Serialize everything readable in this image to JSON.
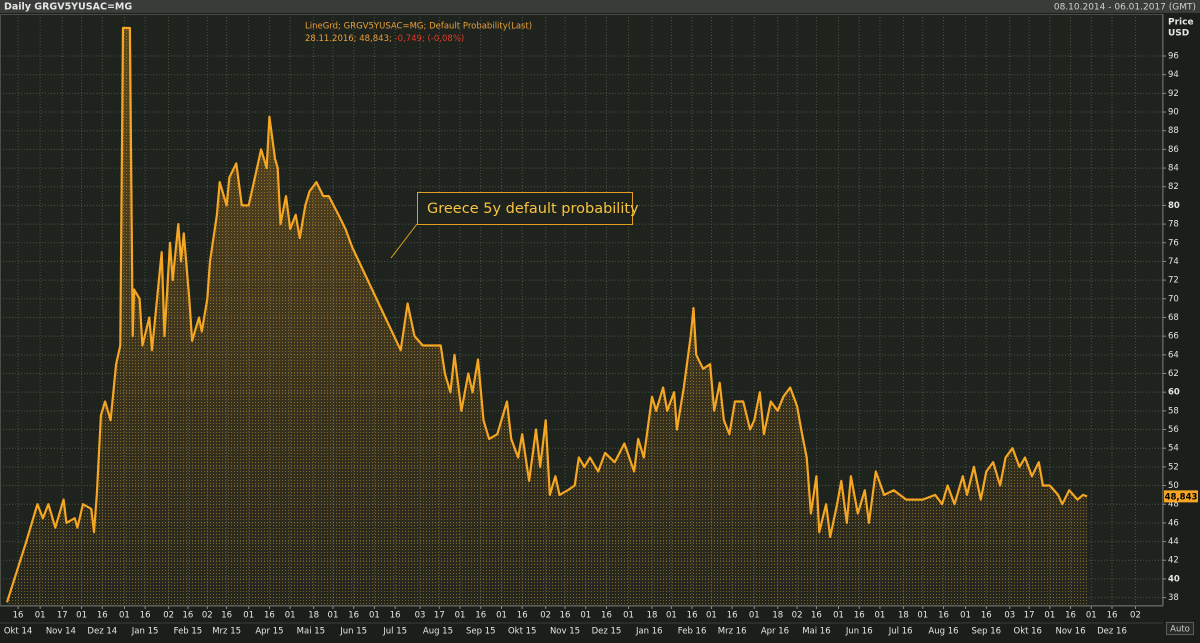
{
  "chart_data": {
    "type": "area-line",
    "title": "Daily GRGV5YUSAC=MG",
    "date_range": "08.10.2014 - 06.01.2017 (GMT)",
    "legend": "LineGrd; GRGV5YUSAC=MG; Default Probability(Last)",
    "legend_last": "28.11.2016; 48,843;",
    "legend_change": "-0,749; (-0,08%)",
    "axis_title": "Price",
    "axis_unit": "USD",
    "annotation": "Greece 5y default probability",
    "last_value_label": "48,843",
    "scale_mode": "Auto",
    "color": "#f5a623",
    "grid": true,
    "xlim": [
      "2014-10-08",
      "2017-01-06"
    ],
    "ylim": [
      37.1,
      100.5
    ],
    "yticks": [
      38,
      40,
      42,
      44,
      46,
      48,
      50,
      52,
      54,
      56,
      58,
      60,
      62,
      64,
      66,
      68,
      70,
      72,
      74,
      76,
      78,
      80,
      82,
      84,
      86,
      88,
      90,
      92,
      94,
      96
    ],
    "xticks": [
      {
        "value": "2014-10-16",
        "label": "16"
      },
      {
        "value": "2014-11-01",
        "label": "01"
      },
      {
        "value": "2014-11-17",
        "label": "17"
      },
      {
        "value": "2014-12-01",
        "label": "01"
      },
      {
        "value": "2014-12-16",
        "label": "16"
      },
      {
        "value": "2015-01-01",
        "label": "01"
      },
      {
        "value": "2015-01-16",
        "label": "16"
      },
      {
        "value": "2015-02-02",
        "label": "02"
      },
      {
        "value": "2015-02-16",
        "label": "16"
      },
      {
        "value": "2015-03-02",
        "label": "02"
      },
      {
        "value": "2015-03-16",
        "label": "16"
      },
      {
        "value": "2015-04-01",
        "label": "01"
      },
      {
        "value": "2015-04-16",
        "label": "16"
      },
      {
        "value": "2015-05-01",
        "label": "01"
      },
      {
        "value": "2015-05-18",
        "label": "18"
      },
      {
        "value": "2015-06-01",
        "label": "01"
      },
      {
        "value": "2015-06-16",
        "label": "16"
      },
      {
        "value": "2015-07-01",
        "label": "01"
      },
      {
        "value": "2015-07-16",
        "label": "16"
      },
      {
        "value": "2015-08-03",
        "label": "03"
      },
      {
        "value": "2015-08-17",
        "label": "17"
      },
      {
        "value": "2015-09-01",
        "label": "01"
      },
      {
        "value": "2015-09-16",
        "label": "16"
      },
      {
        "value": "2015-10-01",
        "label": "01"
      },
      {
        "value": "2015-10-16",
        "label": "16"
      },
      {
        "value": "2015-11-02",
        "label": "02"
      },
      {
        "value": "2015-11-16",
        "label": "16"
      },
      {
        "value": "2015-12-01",
        "label": "01"
      },
      {
        "value": "2015-12-16",
        "label": "16"
      },
      {
        "value": "2016-01-01",
        "label": "01"
      },
      {
        "value": "2016-01-18",
        "label": "18"
      },
      {
        "value": "2016-02-01",
        "label": "01"
      },
      {
        "value": "2016-02-16",
        "label": "16"
      },
      {
        "value": "2016-03-01",
        "label": "01"
      },
      {
        "value": "2016-03-16",
        "label": "16"
      },
      {
        "value": "2016-04-01",
        "label": "01"
      },
      {
        "value": "2016-04-18",
        "label": "18"
      },
      {
        "value": "2016-05-02",
        "label": "02"
      },
      {
        "value": "2016-05-16",
        "label": "16"
      },
      {
        "value": "2016-06-01",
        "label": "01"
      },
      {
        "value": "2016-06-16",
        "label": "16"
      },
      {
        "value": "2016-07-01",
        "label": "01"
      },
      {
        "value": "2016-07-18",
        "label": "18"
      },
      {
        "value": "2016-08-01",
        "label": "01"
      },
      {
        "value": "2016-08-16",
        "label": "16"
      },
      {
        "value": "2016-09-01",
        "label": "01"
      },
      {
        "value": "2016-09-16",
        "label": "16"
      },
      {
        "value": "2016-10-03",
        "label": "03"
      },
      {
        "value": "2016-10-17",
        "label": "17"
      },
      {
        "value": "2016-11-01",
        "label": "01"
      },
      {
        "value": "2016-11-16",
        "label": "16"
      },
      {
        "value": "2016-12-01",
        "label": "01"
      },
      {
        "value": "2016-12-16",
        "label": "16"
      },
      {
        "value": "2017-01-02",
        "label": "02"
      }
    ],
    "months": [
      {
        "value": "2014-10",
        "label": "Okt 14"
      },
      {
        "value": "2014-11",
        "label": "Nov 14"
      },
      {
        "value": "2014-12",
        "label": "Dez 14"
      },
      {
        "value": "2015-01",
        "label": "Jan 15"
      },
      {
        "value": "2015-02",
        "label": "Feb 15"
      },
      {
        "value": "2015-03",
        "label": "Mrz 15"
      },
      {
        "value": "2015-04",
        "label": "Apr 15"
      },
      {
        "value": "2015-05",
        "label": "Mai 15"
      },
      {
        "value": "2015-06",
        "label": "Jun 15"
      },
      {
        "value": "2015-07",
        "label": "Jul 15"
      },
      {
        "value": "2015-08",
        "label": "Aug 15"
      },
      {
        "value": "2015-09",
        "label": "Sep 15"
      },
      {
        "value": "2015-10",
        "label": "Okt 15"
      },
      {
        "value": "2015-11",
        "label": "Nov 15"
      },
      {
        "value": "2015-12",
        "label": "Dez 15"
      },
      {
        "value": "2016-01",
        "label": "Jan 16"
      },
      {
        "value": "2016-02",
        "label": "Feb 16"
      },
      {
        "value": "2016-03",
        "label": "Mrz 16"
      },
      {
        "value": "2016-04",
        "label": "Apr 16"
      },
      {
        "value": "2016-05",
        "label": "Mai 16"
      },
      {
        "value": "2016-06",
        "label": "Jun 16"
      },
      {
        "value": "2016-07",
        "label": "Jul 16"
      },
      {
        "value": "2016-08",
        "label": "Aug 16"
      },
      {
        "value": "2016-09",
        "label": "Sep 16"
      },
      {
        "value": "2016-10",
        "label": "Okt 16"
      },
      {
        "value": "2016-11",
        "label": "Nov 16"
      },
      {
        "value": "2016-12",
        "label": "Dez 16"
      }
    ],
    "x": [
      "2014-10-08",
      "2014-10-22",
      "2014-10-30",
      "2014-11-03",
      "2014-11-07",
      "2014-11-12",
      "2014-11-18",
      "2014-11-20",
      "2014-11-26",
      "2014-11-28",
      "2014-12-02",
      "2014-12-08",
      "2014-12-10",
      "2014-12-12",
      "2014-12-15",
      "2014-12-18",
      "2014-12-22",
      "2014-12-26",
      "2014-12-29",
      "2014-12-31",
      "2015-01-05",
      "2015-01-07",
      "2015-01-08",
      "2015-01-12",
      "2015-01-14",
      "2015-01-19",
      "2015-01-21",
      "2015-01-26",
      "2015-01-28",
      "2015-01-30",
      "2015-02-03",
      "2015-02-05",
      "2015-02-09",
      "2015-02-11",
      "2015-02-13",
      "2015-02-17",
      "2015-02-19",
      "2015-02-24",
      "2015-02-26",
      "2015-03-02",
      "2015-03-04",
      "2015-03-09",
      "2015-03-11",
      "2015-03-16",
      "2015-03-18",
      "2015-03-23",
      "2015-03-27",
      "2015-04-01",
      "2015-04-07",
      "2015-04-10",
      "2015-04-14",
      "2015-04-16",
      "2015-04-20",
      "2015-04-22",
      "2015-04-24",
      "2015-04-28",
      "2015-05-01",
      "2015-05-05",
      "2015-05-08",
      "2015-05-12",
      "2015-05-15",
      "2015-05-20",
      "2015-05-25",
      "2015-05-29",
      "2015-06-05",
      "2015-06-10",
      "2015-06-15",
      "2015-07-20",
      "2015-07-25",
      "2015-07-30",
      "2015-08-05",
      "2015-08-18",
      "2015-08-21",
      "2015-08-25",
      "2015-08-28",
      "2015-09-02",
      "2015-09-07",
      "2015-09-10",
      "2015-09-14",
      "2015-09-18",
      "2015-09-22",
      "2015-09-28",
      "2015-10-05",
      "2015-10-08",
      "2015-10-13",
      "2015-10-16",
      "2015-10-21",
      "2015-10-26",
      "2015-10-29",
      "2015-11-02",
      "2015-11-05",
      "2015-11-09",
      "2015-11-12",
      "2015-11-18",
      "2015-11-23",
      "2015-11-26",
      "2015-11-30",
      "2015-12-04",
      "2015-12-10",
      "2015-12-15",
      "2015-12-22",
      "2015-12-29",
      "2016-01-05",
      "2016-01-08",
      "2016-01-12",
      "2016-01-18",
      "2016-01-21",
      "2016-01-26",
      "2016-01-29",
      "2016-02-03",
      "2016-02-05",
      "2016-02-10",
      "2016-02-15",
      "2016-02-17",
      "2016-02-19",
      "2016-02-24",
      "2016-02-29",
      "2016-03-03",
      "2016-03-07",
      "2016-03-10",
      "2016-03-14",
      "2016-03-18",
      "2016-03-24",
      "2016-03-29",
      "2016-04-01",
      "2016-04-05",
      "2016-04-08",
      "2016-04-13",
      "2016-04-18",
      "2016-04-22",
      "2016-04-27",
      "2016-05-02",
      "2016-05-05",
      "2016-05-09",
      "2016-05-12",
      "2016-05-16",
      "2016-05-18",
      "2016-05-23",
      "2016-05-26",
      "2016-05-31",
      "2016-06-03",
      "2016-06-07",
      "2016-06-10",
      "2016-06-15",
      "2016-06-20",
      "2016-06-23",
      "2016-06-28",
      "2016-07-04",
      "2016-07-11",
      "2016-07-20",
      "2016-08-01",
      "2016-08-10",
      "2016-08-15",
      "2016-08-19",
      "2016-08-24",
      "2016-08-30",
      "2016-09-02",
      "2016-09-07",
      "2016-09-12",
      "2016-09-16",
      "2016-09-21",
      "2016-09-26",
      "2016-09-30",
      "2016-10-05",
      "2016-10-10",
      "2016-10-14",
      "2016-10-19",
      "2016-10-24",
      "2016-10-27",
      "2016-11-01",
      "2016-11-07",
      "2016-11-10",
      "2016-11-15",
      "2016-11-21",
      "2016-11-25",
      "2016-11-28"
    ],
    "values": [
      37.5,
      44,
      48,
      46.5,
      48,
      45.5,
      48.5,
      46,
      46.5,
      45.5,
      48,
      47.5,
      45,
      49,
      57.5,
      59,
      57,
      63,
      65,
      99,
      99,
      66,
      71,
      70,
      65,
      68,
      64.5,
      72,
      75,
      66,
      76,
      72,
      78,
      74,
      77,
      70,
      65.5,
      68,
      66.5,
      70,
      74,
      79,
      82.5,
      80,
      83,
      84.5,
      80,
      80,
      84,
      86,
      84,
      89.5,
      85,
      84,
      78,
      81,
      77.5,
      79,
      76.5,
      80,
      81.5,
      82.5,
      81,
      81,
      79,
      77.5,
      75.5,
      64.5,
      69.5,
      66,
      65,
      65,
      62,
      60,
      64,
      58,
      62,
      60,
      63.5,
      57,
      55,
      55.5,
      59,
      55,
      53,
      55.5,
      50.5,
      56,
      52,
      57,
      49,
      51,
      49,
      49.5,
      50,
      53,
      52,
      53,
      51.5,
      53.5,
      52.5,
      54.5,
      51.5,
      55,
      53,
      59.5,
      58,
      60.5,
      58,
      60,
      56,
      60.5,
      66,
      69,
      64,
      62.5,
      63,
      58,
      61,
      57,
      55.5,
      59,
      59,
      56,
      57,
      60,
      55.5,
      59,
      58,
      59.5,
      60.5,
      58.5,
      56,
      53,
      47,
      51,
      45,
      48,
      44.5,
      48,
      50.5,
      46,
      51,
      47,
      49.5,
      46,
      51.5,
      49,
      49.5,
      48.5,
      48.5,
      49,
      48,
      50,
      48,
      51,
      49,
      52,
      48.5,
      51.5,
      52.5,
      50,
      53,
      54,
      52,
      53,
      51,
      52.5,
      50,
      50,
      49,
      48,
      49.5,
      48.5,
      49,
      48.843
    ]
  }
}
